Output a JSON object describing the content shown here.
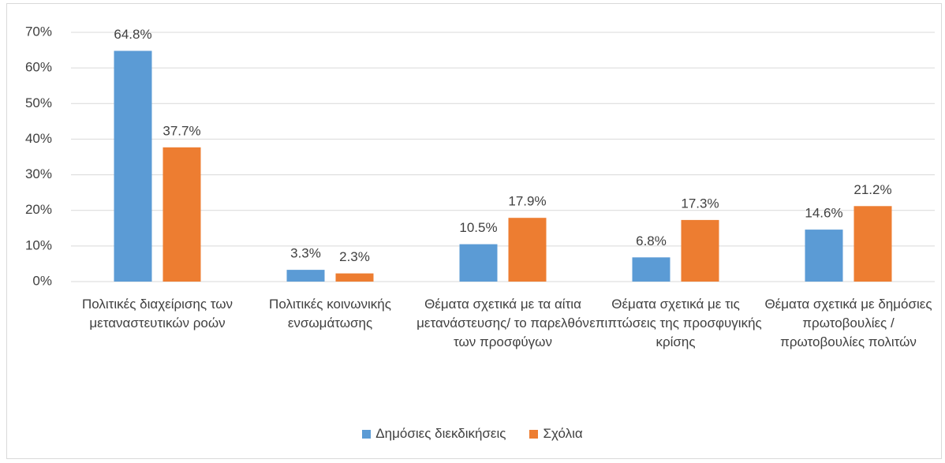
{
  "chart_data": {
    "type": "bar",
    "categories": [
      "Πολιτικές διαχείρισης των μεταναστευτικών ροών",
      "Πολιτικές κοινωνικής ενσωμάτωσης",
      "Θέματα σχετικά με τα αίτια μετανάστευσης/ το παρελθόν  των προσφύγων",
      "Θέματα σχετικά με τις επιπτώσεις της προσφυγικής κρίσης",
      "Θέματα σχετικά με δημόσιες πρωτοβουλίες / πρωτοβουλίες πολιτών"
    ],
    "series": [
      {
        "name": "Δημόσιες διεκδικήσεις",
        "color": "#5b9bd5",
        "values": [
          64.8,
          3.3,
          10.5,
          6.8,
          14.6
        ],
        "value_labels": [
          "64.8%",
          "3.3%",
          "10.5%",
          "6.8%",
          "14.6%"
        ]
      },
      {
        "name": "Σχόλια",
        "color": "#ed7d31",
        "values": [
          37.7,
          2.3,
          17.9,
          17.3,
          21.2
        ],
        "value_labels": [
          "37.7%",
          "2.3%",
          "17.9%",
          "17.3%",
          "21.2%"
        ]
      }
    ],
    "ylim": [
      0,
      70
    ],
    "yticks": [
      {
        "value": 0,
        "label": "0%"
      },
      {
        "value": 10,
        "label": "10%"
      },
      {
        "value": 20,
        "label": "20%"
      },
      {
        "value": 30,
        "label": "30%"
      },
      {
        "value": 40,
        "label": "40%"
      },
      {
        "value": 50,
        "label": "50%"
      },
      {
        "value": 60,
        "label": "60%"
      },
      {
        "value": 70,
        "label": "70%"
      }
    ],
    "grid": true,
    "legend": "bottom"
  }
}
